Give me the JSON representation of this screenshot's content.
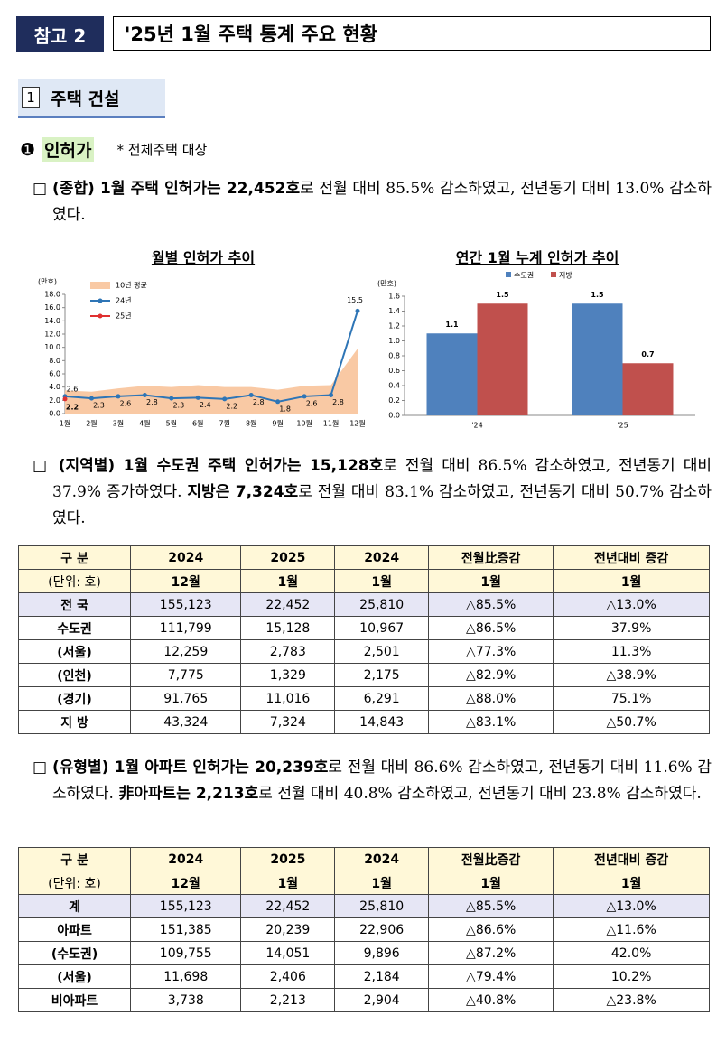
{
  "header": {
    "badge": "참고 2",
    "title": "'25년 1월 주택 통계 주요 현황"
  },
  "section": {
    "number": "1",
    "title": "주택 건설"
  },
  "subsection": {
    "marker": "❶",
    "title": "인허가",
    "note": "* 전체주택 대상"
  },
  "paragraphs": [
    {
      "segments": [
        {
          "text": "□ ",
          "bold": false
        },
        {
          "text": "(종합) 1월 주택 인허가는 22,452호",
          "bold": true
        },
        {
          "text": "로 전월 대비 85.5% 감소하였고, 전년동기 대비 13.0% 감소하였다.",
          "bold": false
        }
      ]
    },
    {
      "segments": [
        {
          "text": "□ ",
          "bold": false
        },
        {
          "text": "(지역별) 1월 수도권 주택 인허가는 15,128호",
          "bold": true
        },
        {
          "text": "로 전월 대비 86.5% 감소하였고, 전년동기 대비 37.9% 증가하였다. ",
          "bold": false
        },
        {
          "text": "지방은 7,324호",
          "bold": true
        },
        {
          "text": "로 전월 대비 83.1% 감소하였고, 전년동기 대비 50.7% 감소하였다.",
          "bold": false
        }
      ]
    },
    {
      "segments": [
        {
          "text": "□ ",
          "bold": false
        },
        {
          "text": "(유형별) 1월 아파트 인허가는 20,239호",
          "bold": true
        },
        {
          "text": "로 전월 대비 86.6% 감소하였고, 전년동기 대비 11.6% 감소하였다. ",
          "bold": false
        },
        {
          "text": "非아파트는 2,213호",
          "bold": true
        },
        {
          "text": "로 전월 대비 40.8% 감소하였고, 전년동기 대비 23.8% 감소하였다.",
          "bold": false
        }
      ]
    }
  ],
  "chart_data": [
    {
      "type": "line",
      "title": "월별 인허가 추이",
      "y_label": "(만호)",
      "categories": [
        "1월",
        "2월",
        "3월",
        "4월",
        "5월",
        "6월",
        "7월",
        "8월",
        "9월",
        "10월",
        "11월",
        "12월"
      ],
      "series": [
        {
          "name": "10년 평균",
          "kind": "area",
          "color": "#f9c9a4",
          "values": [
            3.5,
            3.3,
            3.8,
            4.2,
            4.0,
            4.3,
            4.0,
            4.0,
            3.6,
            4.2,
            4.3,
            9.8
          ]
        },
        {
          "name": "24년",
          "kind": "line",
          "color": "#2e75b6",
          "values": [
            2.6,
            2.3,
            2.6,
            2.8,
            2.3,
            2.4,
            2.2,
            2.8,
            1.8,
            2.6,
            2.8,
            15.5
          ]
        },
        {
          "name": "25년",
          "kind": "line",
          "color": "#e03030",
          "values": [
            2.2,
            null,
            null,
            null,
            null,
            null,
            null,
            null,
            null,
            null,
            null,
            null
          ]
        }
      ],
      "ylim": [
        0,
        18
      ],
      "yticks": [
        {
          "value": 0,
          "label": "0.0"
        },
        {
          "value": 2,
          "label": "2.0"
        },
        {
          "value": 4,
          "label": "4.0"
        },
        {
          "value": 6,
          "label": "6.0"
        },
        {
          "value": 8,
          "label": "8.0"
        },
        {
          "value": 10,
          "label": "10.0"
        },
        {
          "value": 12,
          "label": "12.0"
        },
        {
          "value": 14,
          "label": "14.0"
        },
        {
          "value": 16,
          "label": "16.0"
        },
        {
          "value": 18,
          "label": "18.0"
        }
      ]
    },
    {
      "type": "bar",
      "title": "연간 1월 누계 인허가 추이",
      "y_label": "(만호)",
      "categories": [
        "'24",
        "'25"
      ],
      "series": [
        {
          "name": "수도권",
          "color": "#4f81bd",
          "values": [
            1.1,
            1.5
          ]
        },
        {
          "name": "지방",
          "color": "#c0504d",
          "values": [
            1.5,
            0.7
          ]
        }
      ],
      "ylim": [
        0,
        1.6
      ],
      "yticks": [
        {
          "value": 0,
          "label": "0.0"
        },
        0.2,
        0.4,
        0.6,
        0.8,
        {
          "value": 1,
          "label": "1.0"
        },
        1.2,
        1.4,
        1.6
      ]
    }
  ],
  "tables": [
    {
      "header": [
        [
          "구 분",
          "2024",
          "2025",
          "2024",
          "전월比증감",
          "전년대비 증감"
        ],
        [
          "(단위: 호)",
          "12월",
          "1월",
          "1월",
          "1월",
          "1월"
        ]
      ],
      "rows": [
        [
          "전 국",
          "155,123",
          "22,452",
          "25,810",
          "△85.5%",
          "△13.0%"
        ],
        [
          "수도권",
          "111,799",
          "15,128",
          "10,967",
          "△86.5%",
          "37.9%"
        ],
        [
          "(서울)",
          "12,259",
          "2,783",
          "2,501",
          "△77.3%",
          "11.3%"
        ],
        [
          "(인천)",
          "7,775",
          "1,329",
          "2,175",
          "△82.9%",
          "△38.9%"
        ],
        [
          "(경기)",
          "91,765",
          "11,016",
          "6,291",
          "△88.0%",
          "75.1%"
        ],
        [
          "지 방",
          "43,324",
          "7,324",
          "14,843",
          "△83.1%",
          "△50.7%"
        ]
      ]
    },
    {
      "header": [
        [
          "구 분",
          "2024",
          "2025",
          "2024",
          "전월比증감",
          "전년대비 증감"
        ],
        [
          "(단위: 호)",
          "12월",
          "1월",
          "1월",
          "1월",
          "1월"
        ]
      ],
      "rows": [
        [
          "계",
          "155,123",
          "22,452",
          "25,810",
          "△85.5%",
          "△13.0%"
        ],
        [
          "아파트",
          "151,385",
          "20,239",
          "22,906",
          "△86.6%",
          "△11.6%"
        ],
        [
          "(수도권)",
          "109,755",
          "14,051",
          "9,896",
          "△87.2%",
          "42.0%"
        ],
        [
          "(서울)",
          "11,698",
          "2,406",
          "2,184",
          "△79.4%",
          "10.2%"
        ],
        [
          "비아파트",
          "3,738",
          "2,213",
          "2,904",
          "△40.8%",
          "△23.8%"
        ]
      ]
    }
  ]
}
